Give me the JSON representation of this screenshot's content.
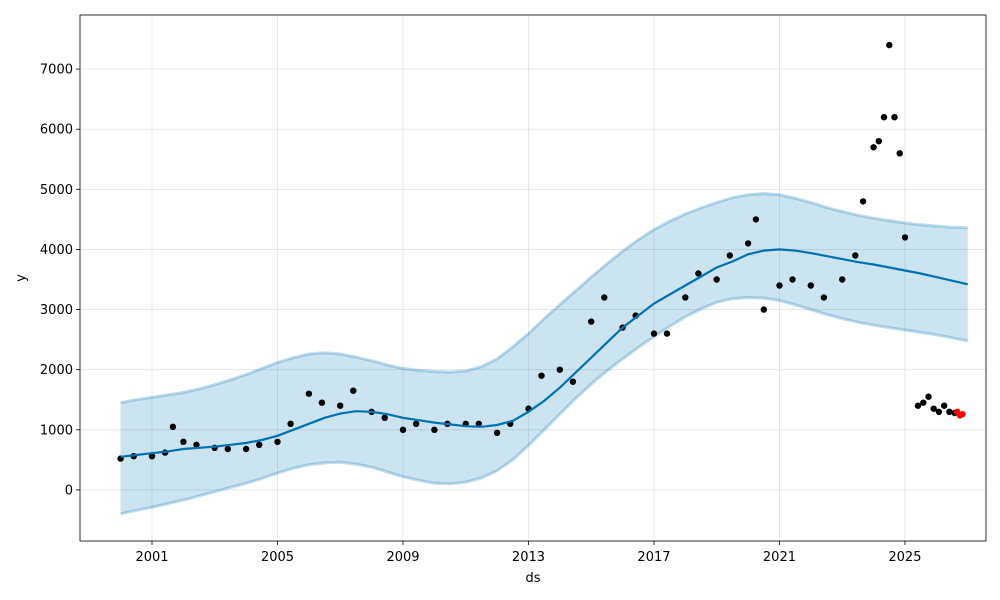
{
  "chart_data": {
    "type": "line",
    "xlabel": "ds",
    "ylabel": "y",
    "x_ticks": [
      "2001",
      "2005",
      "2009",
      "2013",
      "2017",
      "2021",
      "2025"
    ],
    "y_ticks": [
      "0",
      "1000",
      "2000",
      "3000",
      "4000",
      "5000",
      "6000",
      "7000"
    ],
    "xlim": [
      "1998-09-15",
      "2027-08-01"
    ],
    "ylim": [
      -850,
      7900
    ],
    "grid": true,
    "colors": {
      "forecast_line": "#0072B2",
      "uncertainty_band": "#0072B2",
      "observed_points": "#000000",
      "highlight_points": "#ff0000"
    },
    "series": [
      {
        "role": "forecast",
        "x": [
          "2000-01-01",
          "2000-07-01",
          "2001-01-01",
          "2001-07-01",
          "2002-01-01",
          "2002-07-01",
          "2003-01-01",
          "2003-07-01",
          "2004-01-01",
          "2004-07-01",
          "2005-01-01",
          "2005-07-01",
          "2006-01-01",
          "2006-07-01",
          "2007-01-01",
          "2007-07-01",
          "2008-01-01",
          "2008-07-01",
          "2009-01-01",
          "2009-07-01",
          "2010-01-01",
          "2010-07-01",
          "2011-01-01",
          "2011-07-01",
          "2012-01-01",
          "2012-07-01",
          "2013-01-01",
          "2013-07-01",
          "2014-01-01",
          "2014-07-01",
          "2015-01-01",
          "2015-07-01",
          "2016-01-01",
          "2016-07-01",
          "2017-01-01",
          "2017-07-01",
          "2018-01-01",
          "2018-07-01",
          "2019-01-01",
          "2019-07-01",
          "2020-01-01",
          "2020-07-01",
          "2021-01-01",
          "2021-07-01",
          "2022-01-01",
          "2022-07-01",
          "2023-01-01",
          "2023-07-01",
          "2024-01-01",
          "2024-07-01",
          "2025-01-01",
          "2025-07-01",
          "2026-01-01",
          "2026-07-01",
          "2027-01-01"
        ],
        "y": [
          550,
          580,
          610,
          640,
          680,
          700,
          720,
          750,
          780,
          830,
          900,
          1000,
          1100,
          1200,
          1270,
          1310,
          1300,
          1260,
          1200,
          1160,
          1120,
          1090,
          1060,
          1050,
          1080,
          1150,
          1300,
          1480,
          1700,
          1950,
          2200,
          2450,
          2700,
          2900,
          3100,
          3250,
          3400,
          3550,
          3700,
          3800,
          3920,
          3980,
          4000,
          3980,
          3940,
          3890,
          3840,
          3790,
          3750,
          3700,
          3650,
          3600,
          3540,
          3480,
          3420
        ],
        "lower": [
          -400,
          -340,
          -290,
          -230,
          -170,
          -100,
          -30,
          40,
          110,
          190,
          280,
          360,
          420,
          450,
          460,
          430,
          380,
          300,
          220,
          160,
          110,
          100,
          130,
          200,
          320,
          500,
          740,
          1000,
          1260,
          1520,
          1760,
          1980,
          2180,
          2370,
          2550,
          2720,
          2880,
          3010,
          3120,
          3180,
          3200,
          3190,
          3150,
          3080,
          3000,
          2920,
          2850,
          2790,
          2740,
          2700,
          2660,
          2620,
          2580,
          2530,
          2480
        ],
        "upper": [
          1450,
          1500,
          1540,
          1580,
          1620,
          1680,
          1750,
          1830,
          1920,
          2020,
          2120,
          2200,
          2260,
          2280,
          2260,
          2210,
          2150,
          2080,
          2020,
          1990,
          1970,
          1960,
          1980,
          2050,
          2180,
          2380,
          2600,
          2850,
          3080,
          3310,
          3540,
          3760,
          3970,
          4160,
          4330,
          4470,
          4590,
          4690,
          4780,
          4860,
          4910,
          4930,
          4910,
          4850,
          4780,
          4700,
          4630,
          4570,
          4520,
          4480,
          4440,
          4410,
          4390,
          4370,
          4360
        ]
      },
      {
        "role": "observed",
        "x": [
          "2000-01-01",
          "2000-06-01",
          "2001-01-01",
          "2001-06-01",
          "2001-09-01",
          "2002-01-01",
          "2002-06-01",
          "2003-01-01",
          "2003-06-01",
          "2004-01-01",
          "2004-06-01",
          "2005-01-01",
          "2005-06-01",
          "2006-01-01",
          "2006-06-01",
          "2007-01-01",
          "2007-06-01",
          "2008-01-01",
          "2008-06-01",
          "2009-01-01",
          "2009-06-01",
          "2010-01-01",
          "2010-06-01",
          "2011-01-01",
          "2011-06-01",
          "2012-01-01",
          "2012-06-01",
          "2013-01-01",
          "2013-06-01",
          "2014-01-01",
          "2014-06-01",
          "2015-01-01",
          "2015-06-01",
          "2016-01-01",
          "2016-06-01",
          "2017-01-01",
          "2017-06-01",
          "2018-01-01",
          "2018-06-01",
          "2019-01-01",
          "2019-06-01",
          "2020-01-01",
          "2020-04-01",
          "2020-07-01",
          "2021-01-01",
          "2021-06-01",
          "2022-01-01",
          "2022-06-01",
          "2023-01-01",
          "2023-06-01",
          "2023-09-01",
          "2024-01-01",
          "2024-03-01",
          "2024-05-01",
          "2024-07-01",
          "2024-09-01",
          "2024-11-01",
          "2025-01-01"
        ],
        "y": [
          520,
          560,
          560,
          620,
          1050,
          800,
          750,
          700,
          680,
          680,
          750,
          800,
          1100,
          1600,
          1450,
          1400,
          1650,
          1300,
          1200,
          1000,
          1100,
          1000,
          1100,
          1100,
          1100,
          950,
          1100,
          1350,
          1900,
          2000,
          1800,
          2800,
          3200,
          2700,
          2900,
          2600,
          2600,
          3200,
          3600,
          3500,
          3900,
          4100,
          4500,
          3000,
          3400,
          3500,
          3400,
          3200,
          3500,
          3900,
          4800,
          5700,
          5800,
          6200,
          7400,
          6200,
          5600,
          4200
        ]
      },
      {
        "role": "observed",
        "x": [
          "2025-06-01",
          "2025-08-01",
          "2025-10-01",
          "2025-12-01",
          "2026-02-01",
          "2026-04-01",
          "2026-06-01",
          "2026-08-01"
        ],
        "y": [
          1400,
          1450,
          1550,
          1350,
          1300,
          1400,
          1300,
          1280
        ]
      },
      {
        "role": "highlight",
        "x": [
          "2026-09-01",
          "2026-10-01",
          "2026-11-01"
        ],
        "y": [
          1300,
          1240,
          1260
        ]
      }
    ]
  }
}
